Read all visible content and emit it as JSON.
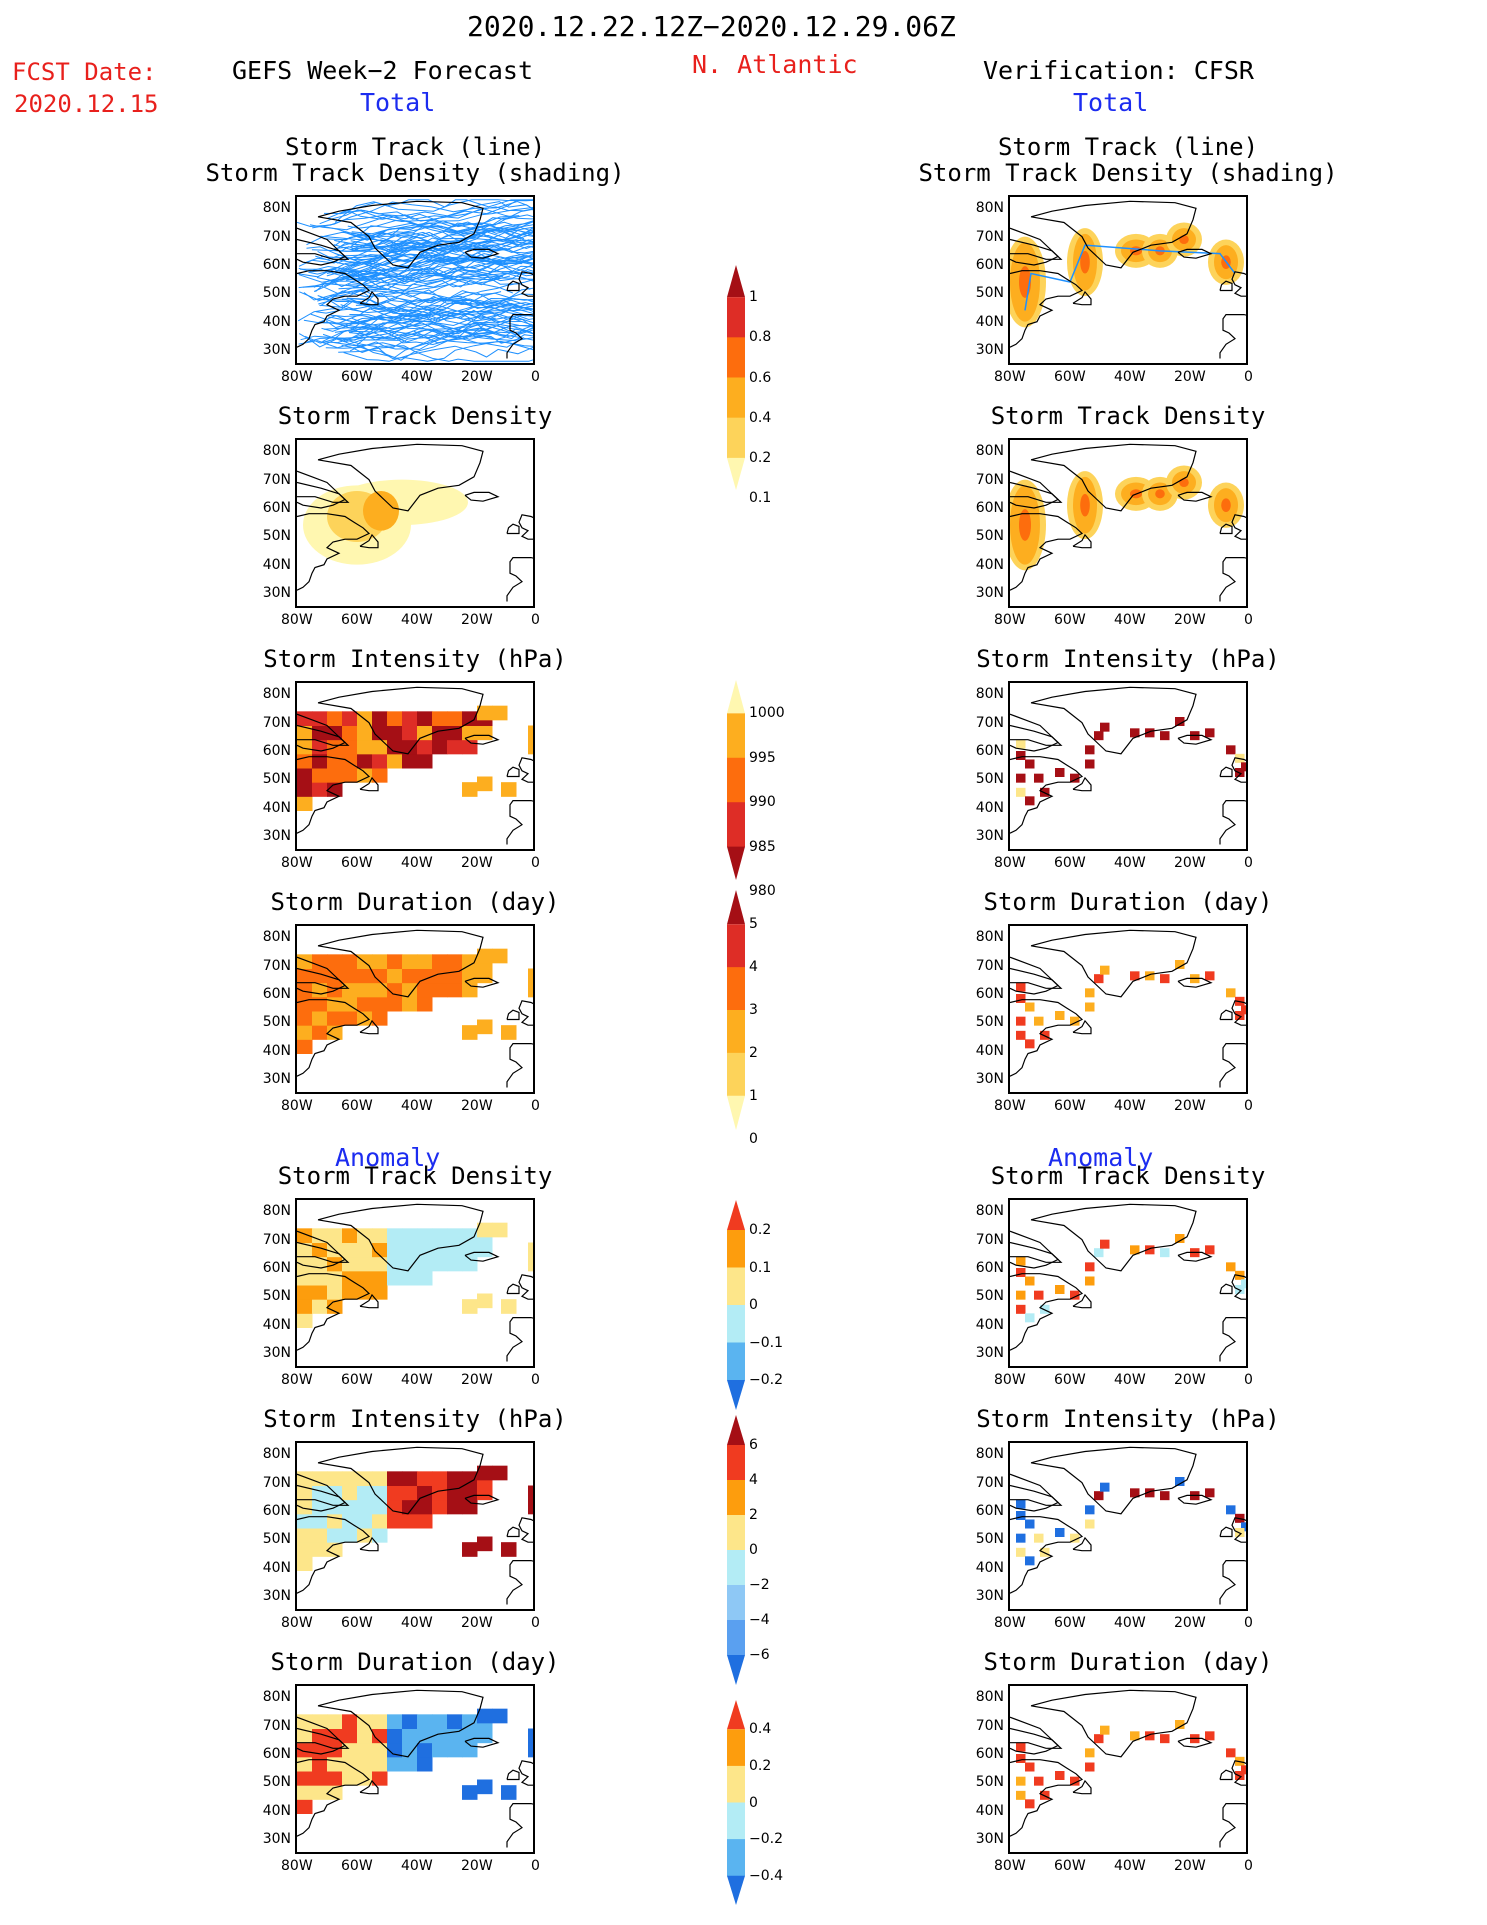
{
  "header": {
    "date_range": "2020.12.22.12Z−2020.12.29.06Z",
    "fcst_label": "FCST Date:",
    "fcst_date": "2020.12.15",
    "left_title": "GEFS Week−2 Forecast",
    "region": "N. Atlantic",
    "right_title": "Verification: CFSR",
    "total_label": "Total",
    "anomaly_label": "Anomaly"
  },
  "axes": {
    "y_ticks": [
      "80N",
      "70N",
      "60N",
      "50N",
      "40N",
      "30N"
    ],
    "x_ticks": [
      "80W",
      "60W",
      "40W",
      "20W",
      "0"
    ]
  },
  "colors": {
    "title_red": "#e8201c",
    "title_blue": "#1c2cf0",
    "track_line": "#1e90ff",
    "land_outline": "#000000"
  },
  "panels": [
    {
      "col": "left",
      "row": 0,
      "title1": "Storm Track (line)",
      "title2": "Storm Track Density (shading)",
      "kind": "tracks"
    },
    {
      "col": "left",
      "row": 1,
      "title1": "Storm Track Density",
      "kind": "density"
    },
    {
      "col": "left",
      "row": 2,
      "title1": "Storm Intensity (hPa)",
      "kind": "intensity"
    },
    {
      "col": "left",
      "row": 3,
      "title1": "Storm Duration (day)",
      "kind": "duration"
    },
    {
      "col": "left",
      "row": 4,
      "title1": "Storm Track Density",
      "kind": "anom_density"
    },
    {
      "col": "left",
      "row": 5,
      "title1": "Storm Intensity (hPa)",
      "kind": "anom_intensity"
    },
    {
      "col": "left",
      "row": 6,
      "title1": "Storm Duration (day)",
      "kind": "anom_duration"
    },
    {
      "col": "right",
      "row": 0,
      "title1": "Storm Track (line)",
      "title2": "Storm Track Density (shading)",
      "kind": "obs_tracks"
    },
    {
      "col": "right",
      "row": 1,
      "title1": "Storm Track Density",
      "kind": "obs_density"
    },
    {
      "col": "right",
      "row": 2,
      "title1": "Storm Intensity (hPa)",
      "kind": "obs_intensity"
    },
    {
      "col": "right",
      "row": 3,
      "title1": "Storm Duration (day)",
      "kind": "obs_duration"
    },
    {
      "col": "right",
      "row": 4,
      "title1": "Storm Track Density",
      "kind": "obs_anom_density"
    },
    {
      "col": "right",
      "row": 5,
      "title1": "Storm Intensity (hPa)",
      "kind": "obs_anom_intensity"
    },
    {
      "col": "right",
      "row": 6,
      "title1": "Storm Duration (day)",
      "kind": "obs_anom_duration"
    }
  ],
  "colorbars": [
    {
      "name": "density",
      "labels": [
        "1",
        "0.8",
        "0.6",
        "0.4",
        "0.2",
        "0.1"
      ],
      "colors": [
        "#a50f15",
        "#de2d26",
        "#fd6d0d",
        "#fdae1f",
        "#fdd35a",
        "#fff7b0"
      ]
    },
    {
      "name": "intensity",
      "labels": [
        "1000",
        "995",
        "990",
        "985",
        "980"
      ],
      "colors": [
        "#fff7b0",
        "#fdae1f",
        "#fd6d0d",
        "#de2d26",
        "#a50f15"
      ]
    },
    {
      "name": "duration",
      "labels": [
        "5",
        "4",
        "3",
        "2",
        "1",
        "0"
      ],
      "colors": [
        "#a50f15",
        "#de2d26",
        "#fd6d0d",
        "#fdae1f",
        "#fdd35a",
        "#fff7b0"
      ]
    },
    {
      "name": "anom_density",
      "labels": [
        "0.2",
        "0.1",
        "0",
        "−0.1",
        "−0.2"
      ],
      "colors": [
        "#f03b20",
        "#fd9d0d",
        "#fde68a",
        "#b3ecf5",
        "#5ab4f0",
        "#1f6fe0"
      ]
    },
    {
      "name": "anom_intensity",
      "labels": [
        "6",
        "4",
        "2",
        "0",
        "−2",
        "−4",
        "−6"
      ],
      "colors": [
        "#a50f15",
        "#f03b20",
        "#fd9d0d",
        "#fde68a",
        "#b3ecf5",
        "#8ec8f5",
        "#5aa0f0",
        "#1f6fe0"
      ]
    },
    {
      "name": "anom_duration",
      "labels": [
        "0.4",
        "0.2",
        "0",
        "−0.2",
        "−0.4"
      ],
      "colors": [
        "#f03b20",
        "#fd9d0d",
        "#fde68a",
        "#b3ecf5",
        "#5ab4f0",
        "#1f6fe0"
      ]
    }
  ],
  "chart_data": {
    "type": "heatmap",
    "title": "2020.12.22.12Z−2020.12.29.06Z",
    "xlabel": "",
    "ylabel": "",
    "xlim": [
      -80,
      0
    ],
    "ylim": [
      25,
      85
    ],
    "x_ticks": [
      "80W",
      "60W",
      "40W",
      "20W",
      "0"
    ],
    "y_ticks": [
      "80N",
      "70N",
      "60N",
      "50N",
      "40N",
      "30N"
    ]
  }
}
